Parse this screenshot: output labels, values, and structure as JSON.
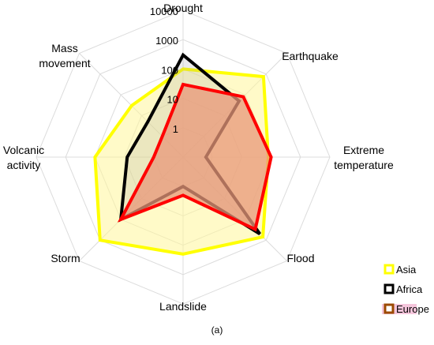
{
  "chart_data": {
    "type": "radar",
    "scale": "log10",
    "categories": [
      "Drought",
      "Earthquake",
      "Extreme temperature",
      "Flood",
      "Landslide",
      "Storm",
      "Volcanic activity",
      "Mass movement"
    ],
    "category_labels": [
      {
        "lines": [
          "Drought"
        ]
      },
      {
        "lines": [
          "Earthquake"
        ]
      },
      {
        "lines": [
          "Extreme",
          "temperature"
        ]
      },
      {
        "lines": [
          "Flood"
        ]
      },
      {
        "lines": [
          "Landslide"
        ]
      },
      {
        "lines": [
          "Storm"
        ]
      },
      {
        "lines": [
          "Volcanic",
          "activity"
        ]
      },
      {
        "lines": [
          "Mass",
          "movement"
        ]
      }
    ],
    "ticks": [
      1,
      10,
      100,
      1000,
      10000
    ],
    "tick_labels": [
      "1",
      "10",
      "100",
      "1000",
      "10000"
    ],
    "range": [
      0.1,
      10000
    ],
    "series": [
      {
        "name": "Asia",
        "values": [
          100,
          750,
          80,
          700,
          200,
          1000,
          100,
          30
        ],
        "stroke": "#ffff00",
        "fill": "#fff59a",
        "fill_opacity": 0.55
      },
      {
        "name": "Africa",
        "values": [
          300,
          50,
          0.6,
          500,
          1,
          100,
          8,
          5
        ],
        "stroke": "#000000",
        "fill": "#9c9c9c",
        "fill_opacity": 0.2
      },
      {
        "name": "Europe",
        "values": [
          30,
          80,
          100,
          300,
          2,
          100,
          1,
          1
        ],
        "stroke": "#ff0000",
        "fill": "#e8977a",
        "fill_opacity": 0.75
      }
    ],
    "grid": true,
    "legend": "bottom-right",
    "caption": "(a)",
    "legend_swatch_borders": [
      "#ffff00",
      "#000000",
      "#9c4a00"
    ]
  }
}
